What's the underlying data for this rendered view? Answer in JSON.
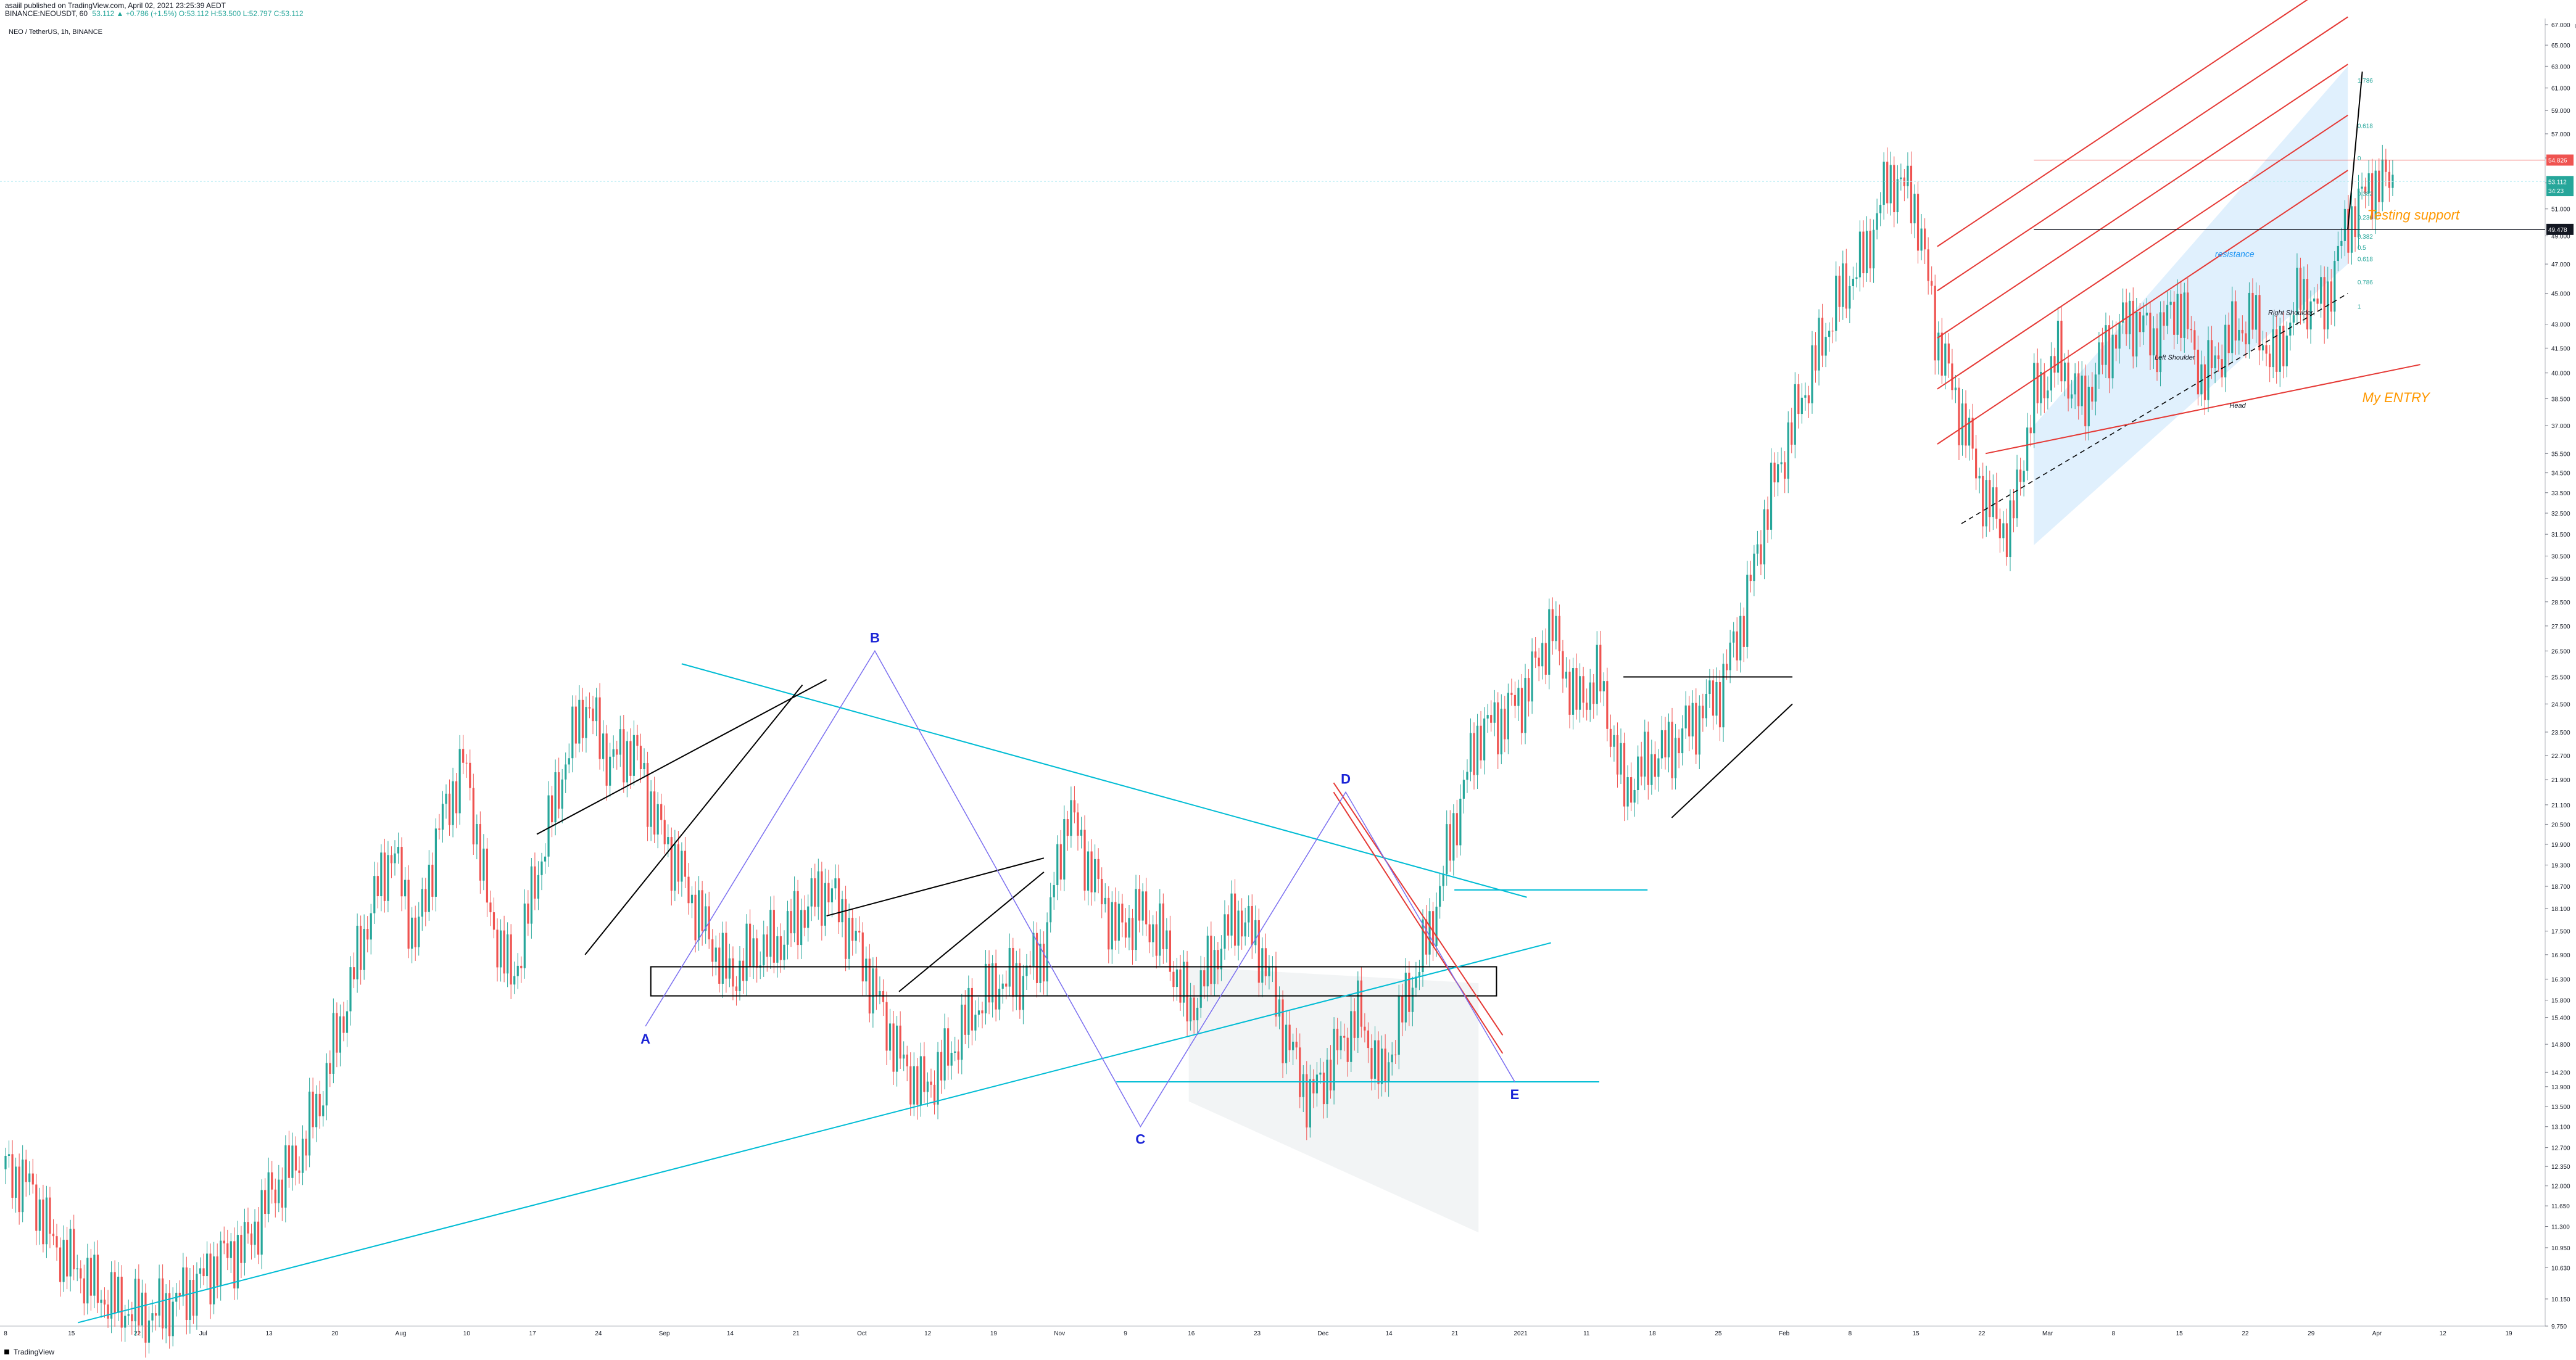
{
  "header": {
    "published": "asaiil published on TradingView.com, April 02, 2021 23:25:39 AEDT",
    "symbol_line": "BINANCE:NEOUSDT, 60",
    "quote": "53.112 ▲ +0.786 (+1.5%) O:53.112 H:53.500 L:52.797 C:53.112",
    "instrument": "NEO / TetherUS, 1h, BINANCE"
  },
  "footer": {
    "brand": "TradingView"
  },
  "colors": {
    "up": "#26a69a",
    "down": "#ef5350",
    "cyan": "#00bcd4",
    "wave": "#7b6ff0",
    "label": "#1a23d6",
    "black": "#000000",
    "red": "#e53935",
    "orange": "#ff9800",
    "price_badge": "#ef5350"
  },
  "chart_data": {
    "type": "candlestick",
    "title": "NEO / TetherUS, 1h, BINANCE",
    "currency": "USDT",
    "yscale": "log",
    "ylim": [
      9.75,
      67.0
    ],
    "yticks": [
      "9.750",
      "10.150",
      "10.630",
      "10.950",
      "11.300",
      "11.650",
      "12.000",
      "12.350",
      "12.700",
      "13.100",
      "13.500",
      "13.900",
      "14.200",
      "14.800",
      "15.400",
      "15.800",
      "16.300",
      "16.900",
      "17.500",
      "18.100",
      "18.700",
      "19.300",
      "19.900",
      "20.500",
      "21.100",
      "21.900",
      "22.700",
      "23.500",
      "24.500",
      "25.500",
      "26.500",
      "27.500",
      "28.500",
      "29.500",
      "30.500",
      "31.500",
      "32.500",
      "33.500",
      "34.500",
      "35.500",
      "37.000",
      "38.500",
      "40.000",
      "41.500",
      "43.000",
      "45.000",
      "47.000",
      "49.000",
      "51.000",
      "53.000",
      "55.000",
      "57.000",
      "59.000",
      "61.000",
      "63.000",
      "65.000",
      "67.000"
    ],
    "price_badges": [
      {
        "label": "54.826",
        "value": 54.826,
        "color": "#ef5350"
      },
      {
        "label": "53.112",
        "value": 53.112,
        "color": "#26a69a"
      },
      {
        "label": "34:23",
        "value": 52.4,
        "color": "#26a69a"
      },
      {
        "label": "49.478",
        "value": 49.478,
        "color": "#131722"
      }
    ],
    "xticks": [
      "8",
      "15",
      "22",
      "Jul",
      "13",
      "20",
      "Aug",
      "10",
      "17",
      "24",
      "Sep",
      "14",
      "21",
      "Oct",
      "12",
      "19",
      "Nov",
      "9",
      "16",
      "23",
      "Dec",
      "14",
      "21",
      "2021",
      "11",
      "18",
      "25",
      "Feb",
      "8",
      "15",
      "22",
      "Mar",
      "8",
      "15",
      "22",
      "29",
      "Apr",
      "12",
      "19"
    ],
    "price_path": [
      [
        0,
        12.3
      ],
      [
        1,
        12.0
      ],
      [
        2,
        11.0
      ],
      [
        3,
        10.6
      ],
      [
        4,
        10.2
      ],
      [
        5,
        10.0
      ],
      [
        6,
        9.9
      ],
      [
        7,
        10.1
      ],
      [
        8,
        10.4
      ],
      [
        9,
        10.8
      ],
      [
        10,
        11.0
      ],
      [
        11,
        11.9
      ],
      [
        12,
        12.4
      ],
      [
        13,
        13.6
      ],
      [
        14,
        15.5
      ],
      [
        15,
        17.8
      ],
      [
        16,
        19.8
      ],
      [
        17,
        17.2
      ],
      [
        18,
        20.5
      ],
      [
        19,
        22.5
      ],
      [
        20,
        18.0
      ],
      [
        21,
        16.2
      ],
      [
        22,
        19.0
      ],
      [
        23,
        22.0
      ],
      [
        24,
        24.6
      ],
      [
        25,
        22.5
      ],
      [
        26,
        23.0
      ],
      [
        27,
        20.5
      ],
      [
        28,
        19.0
      ],
      [
        29,
        17.5
      ],
      [
        30,
        16.3
      ],
      [
        31,
        17.0
      ],
      [
        32,
        17.2
      ],
      [
        33,
        18.0
      ],
      [
        34,
        18.7
      ],
      [
        35,
        17.5
      ],
      [
        36,
        16.0
      ],
      [
        37,
        14.5
      ],
      [
        38,
        13.8
      ],
      [
        39,
        14.5
      ],
      [
        40,
        15.5
      ],
      [
        41,
        16.2
      ],
      [
        42,
        16.3
      ],
      [
        43,
        17.0
      ],
      [
        44,
        21.0
      ],
      [
        45,
        19.0
      ],
      [
        46,
        17.5
      ],
      [
        47,
        18.0
      ],
      [
        48,
        17.2
      ],
      [
        49,
        15.5
      ],
      [
        50,
        16.8
      ],
      [
        51,
        18.0
      ],
      [
        52,
        17.0
      ],
      [
        53,
        15.0
      ],
      [
        54,
        13.6
      ],
      [
        55,
        14.5
      ],
      [
        56,
        15.5
      ],
      [
        57,
        14.0
      ],
      [
        58,
        15.8
      ],
      [
        59,
        17.5
      ],
      [
        60,
        20.5
      ],
      [
        61,
        23.5
      ],
      [
        62,
        24.0
      ],
      [
        63,
        25.0
      ],
      [
        64,
        27.5
      ],
      [
        65,
        24.5
      ],
      [
        66,
        25.5
      ],
      [
        67,
        21.5
      ],
      [
        68,
        22.5
      ],
      [
        69,
        23.0
      ],
      [
        70,
        24.0
      ],
      [
        71,
        25.0
      ],
      [
        72,
        28.0
      ],
      [
        73,
        33.0
      ],
      [
        74,
        37.0
      ],
      [
        75,
        41.0
      ],
      [
        76,
        45.0
      ],
      [
        77,
        47.5
      ],
      [
        78,
        53.5
      ],
      [
        79,
        52.0
      ],
      [
        80,
        42.0
      ],
      [
        81,
        37.5
      ],
      [
        82,
        33.0
      ],
      [
        83,
        31.5
      ],
      [
        84,
        38.5
      ],
      [
        85,
        41.0
      ],
      [
        86,
        38.0
      ],
      [
        87,
        41.5
      ],
      [
        88,
        43.5
      ],
      [
        89,
        42.0
      ],
      [
        90,
        44.5
      ],
      [
        91,
        39.5
      ],
      [
        92,
        42.0
      ],
      [
        93,
        43.5
      ],
      [
        94,
        40.5
      ],
      [
        95,
        45.0
      ],
      [
        96,
        44.0
      ],
      [
        97,
        50.0
      ],
      [
        98,
        53.0
      ],
      [
        99,
        53.1
      ]
    ],
    "wave_points": [
      {
        "label": "A",
        "value": 15.2,
        "at": 26.5
      },
      {
        "label": "B",
        "value": 26.5,
        "at": 36.0
      },
      {
        "label": "C",
        "value": 13.1,
        "at": 47.0
      },
      {
        "label": "D",
        "value": 21.5,
        "at": 55.5
      },
      {
        "label": "E",
        "value": 14.0,
        "at": 62.5
      }
    ],
    "annotations": [
      "resistance",
      "Testing support",
      "My ENTRY",
      "Left Shoulder",
      "Right Shoulder",
      "Head"
    ],
    "fib_levels": [
      {
        "label": "1.786",
        "value": 61.5
      },
      {
        "label": "0.618",
        "value": 57.5
      },
      {
        "label": "0",
        "value": 54.8
      },
      {
        "label": "0.382",
        "value": 52.0
      },
      {
        "label": "0.236",
        "value": 50.2
      },
      {
        "label": "0.382",
        "value": 48.8
      },
      {
        "label": "0.5",
        "value": 48.0
      },
      {
        "label": "0.618",
        "value": 47.2
      },
      {
        "label": "0.786",
        "value": 45.6
      },
      {
        "label": "1",
        "value": 44.0
      }
    ]
  }
}
